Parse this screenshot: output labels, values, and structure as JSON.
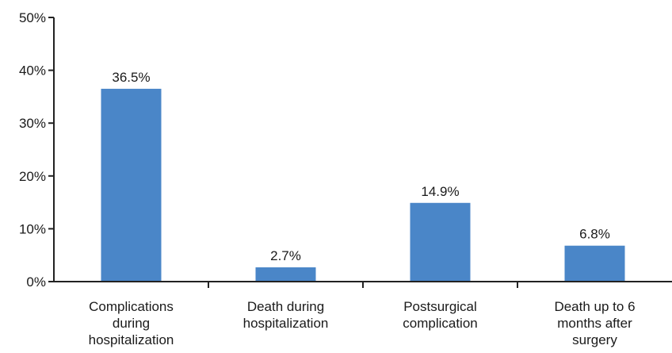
{
  "chart_data": {
    "type": "bar",
    "title": "",
    "xlabel": "",
    "ylabel": "",
    "categories": [
      [
        "Complications",
        "during",
        "hospitalization"
      ],
      [
        "Death during",
        "hospitalization"
      ],
      [
        "Postsurgical",
        "complication"
      ],
      [
        "Death up to 6",
        "months after",
        "surgery"
      ]
    ],
    "values": [
      36.5,
      2.7,
      14.9,
      6.8
    ],
    "data_labels": [
      "36.5%",
      "2.7%",
      "14.9%",
      "6.8%"
    ],
    "yticks": [
      0,
      10,
      20,
      30,
      40,
      50
    ],
    "ytick_labels": [
      "0%",
      "10%",
      "20%",
      "30%",
      "40%",
      "50%"
    ],
    "ylim": [
      0,
      50
    ],
    "grid": false,
    "legend": "none",
    "bar_color": "#4a86c8",
    "axis_color": "#222222"
  }
}
